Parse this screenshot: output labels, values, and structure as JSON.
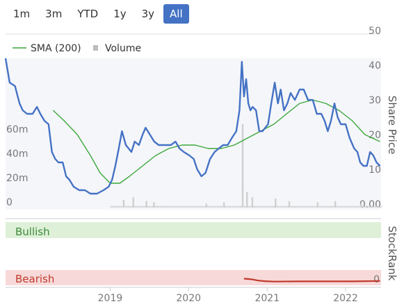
{
  "range_selector": {
    "buttons": [
      "1m",
      "3m",
      "YTD",
      "1y",
      "3y",
      "All"
    ],
    "active": "All",
    "active_color": "#4472c4"
  },
  "legend": {
    "sma_label": "SMA (200)",
    "volume_label": "Volume",
    "sma_color": "#3aa83a",
    "volume_color": "#bdbdbd"
  },
  "chart_data": [
    {
      "type": "line",
      "ylabel": "Share Price",
      "ylim": [
        0,
        50
      ],
      "y_ticks": [
        "50",
        "40",
        "30",
        "20",
        "10",
        "0.00"
      ],
      "x_ticks": [
        "2019",
        "2020",
        "2021",
        "2022"
      ],
      "xlim": [
        "2017-09-01",
        "2022-06-15"
      ],
      "series": [
        {
          "name": "",
          "color": "#4472c4",
          "points": [
            [
              "2017-09-01",
              43
            ],
            [
              "2017-09-20",
              36
            ],
            [
              "2017-10-15",
              35
            ],
            [
              "2017-11-05",
              30
            ],
            [
              "2017-11-20",
              28
            ],
            [
              "2017-12-10",
              27
            ],
            [
              "2018-01-05",
              27
            ],
            [
              "2018-01-25",
              29
            ],
            [
              "2018-02-10",
              27
            ],
            [
              "2018-03-01",
              25
            ],
            [
              "2018-03-20",
              24
            ],
            [
              "2018-04-05",
              16
            ],
            [
              "2018-04-20",
              14
            ],
            [
              "2018-05-05",
              13
            ],
            [
              "2018-05-25",
              13
            ],
            [
              "2018-06-10",
              9
            ],
            [
              "2018-06-25",
              8
            ],
            [
              "2018-07-15",
              6
            ],
            [
              "2018-08-10",
              5
            ],
            [
              "2018-09-05",
              5
            ],
            [
              "2018-10-01",
              4
            ],
            [
              "2018-11-01",
              4
            ],
            [
              "2018-12-01",
              5
            ],
            [
              "2018-12-25",
              6
            ],
            [
              "2019-01-10",
              8
            ],
            [
              "2019-01-25",
              12
            ],
            [
              "2019-02-10",
              17
            ],
            [
              "2019-02-25",
              22
            ],
            [
              "2019-03-15",
              18
            ],
            [
              "2019-04-10",
              16
            ],
            [
              "2019-04-25",
              19
            ],
            [
              "2019-05-15",
              18
            ],
            [
              "2019-06-01",
              21
            ],
            [
              "2019-06-15",
              23
            ],
            [
              "2019-07-05",
              21
            ],
            [
              "2019-07-25",
              19
            ],
            [
              "2019-08-15",
              18
            ],
            [
              "2019-09-10",
              18
            ],
            [
              "2019-10-10",
              18
            ],
            [
              "2019-11-01",
              19
            ],
            [
              "2019-11-20",
              17
            ],
            [
              "2019-12-10",
              16
            ],
            [
              "2020-01-05",
              15
            ],
            [
              "2020-01-25",
              14
            ],
            [
              "2020-02-10",
              11
            ],
            [
              "2020-03-01",
              9
            ],
            [
              "2020-03-20",
              10
            ],
            [
              "2020-04-10",
              14
            ],
            [
              "2020-05-01",
              16
            ],
            [
              "2020-05-20",
              17
            ],
            [
              "2020-06-10",
              18
            ],
            [
              "2020-07-01",
              18
            ],
            [
              "2020-07-20",
              20
            ],
            [
              "2020-08-10",
              22
            ],
            [
              "2020-08-25",
              28
            ],
            [
              "2020-09-05",
              42
            ],
            [
              "2020-09-15",
              32
            ],
            [
              "2020-09-25",
              37
            ],
            [
              "2020-10-05",
              30
            ],
            [
              "2020-10-15",
              28
            ],
            [
              "2020-10-25",
              29
            ],
            [
              "2020-11-10",
              28
            ],
            [
              "2020-11-25",
              22
            ],
            [
              "2020-12-10",
              22
            ],
            [
              "2021-01-05",
              24
            ],
            [
              "2021-01-20",
              30
            ],
            [
              "2021-02-05",
              36
            ],
            [
              "2021-02-20",
              30
            ],
            [
              "2021-03-05",
              34
            ],
            [
              "2021-03-20",
              28
            ],
            [
              "2021-04-05",
              30
            ],
            [
              "2021-04-20",
              33
            ],
            [
              "2021-05-10",
              31
            ],
            [
              "2021-06-01",
              34
            ],
            [
              "2021-06-20",
              34
            ],
            [
              "2021-07-10",
              31
            ],
            [
              "2021-08-01",
              31
            ],
            [
              "2021-08-20",
              27
            ],
            [
              "2021-09-10",
              27
            ],
            [
              "2021-09-25",
              25
            ],
            [
              "2021-10-10",
              22
            ],
            [
              "2021-10-25",
              25
            ],
            [
              "2021-11-10",
              30
            ],
            [
              "2021-11-25",
              26
            ],
            [
              "2021-12-10",
              24
            ],
            [
              "2022-01-01",
              24
            ],
            [
              "2022-01-20",
              20
            ],
            [
              "2022-02-10",
              17
            ],
            [
              "2022-02-25",
              16
            ],
            [
              "2022-03-10",
              13
            ],
            [
              "2022-03-25",
              12
            ],
            [
              "2022-04-10",
              12
            ],
            [
              "2022-04-25",
              16
            ],
            [
              "2022-05-10",
              15
            ],
            [
              "2022-05-25",
              13
            ],
            [
              "2022-06-10",
              12
            ]
          ]
        },
        {
          "name": "SMA (200)",
          "color": "#3aa83a",
          "points": [
            [
              "2018-04-10",
              28
            ],
            [
              "2018-06-01",
              25
            ],
            [
              "2018-08-01",
              21
            ],
            [
              "2018-10-01",
              15
            ],
            [
              "2018-11-15",
              10
            ],
            [
              "2019-01-01",
              7
            ],
            [
              "2019-02-15",
              7
            ],
            [
              "2019-04-01",
              9
            ],
            [
              "2019-06-01",
              12
            ],
            [
              "2019-08-01",
              15
            ],
            [
              "2019-10-01",
              17
            ],
            [
              "2019-12-01",
              18
            ],
            [
              "2020-02-01",
              18
            ],
            [
              "2020-04-01",
              17
            ],
            [
              "2020-06-01",
              17
            ],
            [
              "2020-08-01",
              18
            ],
            [
              "2020-10-01",
              20
            ],
            [
              "2020-12-01",
              22
            ],
            [
              "2021-02-01",
              24
            ],
            [
              "2021-04-01",
              27
            ],
            [
              "2021-06-01",
              30
            ],
            [
              "2021-08-01",
              31
            ],
            [
              "2021-10-01",
              30
            ],
            [
              "2021-12-01",
              28
            ],
            [
              "2022-02-01",
              25
            ],
            [
              "2022-04-01",
              21
            ],
            [
              "2022-06-10",
              19
            ]
          ]
        }
      ]
    },
    {
      "type": "bar",
      "name": "Volume",
      "ylim": [
        0,
        80
      ],
      "y_ticks": [
        "60m",
        "40m",
        "20m",
        "0"
      ],
      "notable_bars": [
        [
          "2019-03-01",
          6
        ],
        [
          "2019-04-15",
          8
        ],
        [
          "2019-06-15",
          5
        ],
        [
          "2019-07-20",
          4
        ],
        [
          "2020-03-20",
          3
        ],
        [
          "2020-06-10",
          4
        ],
        [
          "2020-09-05",
          65
        ],
        [
          "2020-09-25",
          12
        ],
        [
          "2020-10-20",
          8
        ],
        [
          "2021-02-05",
          7
        ],
        [
          "2021-04-10",
          5
        ],
        [
          "2021-08-20",
          4
        ],
        [
          "2021-11-10",
          5
        ],
        [
          "2022-03-10",
          3
        ]
      ],
      "baseline": 1.2
    },
    {
      "type": "line",
      "ylabel": "StockRank",
      "bands": [
        "Bullish",
        "Bearish"
      ],
      "y_ticks": [
        "0"
      ],
      "series": [
        {
          "name": "",
          "color": "#c0392b",
          "points": [
            [
              "2020-09-15",
              1.5
            ],
            [
              "2020-10-20",
              1.2
            ],
            [
              "2020-11-20",
              0.6
            ],
            [
              "2020-12-20",
              0.3
            ],
            [
              "2021-02-01",
              0.1
            ],
            [
              "2021-06-01",
              0.2
            ],
            [
              "2021-10-01",
              0.2
            ],
            [
              "2022-02-01",
              0.2
            ],
            [
              "2022-06-10",
              0.4
            ]
          ]
        }
      ]
    }
  ]
}
